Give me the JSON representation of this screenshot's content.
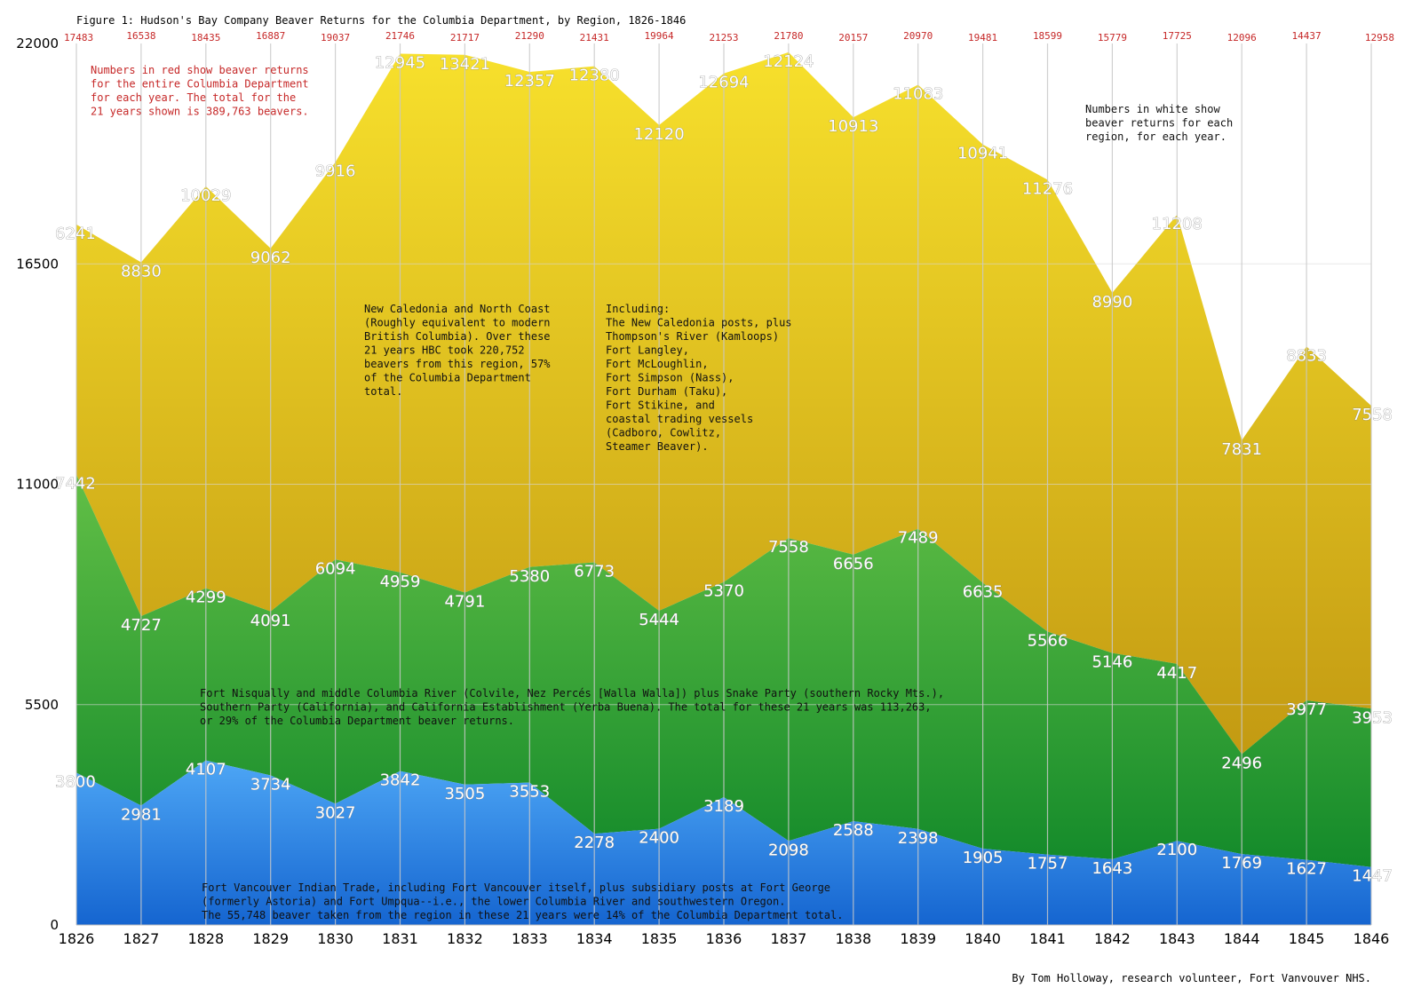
{
  "chart_data": {
    "type": "area",
    "stacked": true,
    "title": "Figure 1: Hudson's Bay Company Beaver Returns for the Columbia Department, by Region, 1826-1846",
    "x": [
      "1826",
      "1827",
      "1828",
      "1829",
      "1830",
      "1831",
      "1832",
      "1833",
      "1834",
      "1835",
      "1836",
      "1837",
      "1838",
      "1839",
      "1840",
      "1841",
      "1842",
      "1843",
      "1844",
      "1845",
      "1846"
    ],
    "y_ticks": [
      "0",
      "5500",
      "11000",
      "16500",
      "22000"
    ],
    "ylim": [
      0,
      22000
    ],
    "grid": "horizontal and vertical lines at each year and y tick",
    "totals": [
      17483,
      16538,
      18435,
      16887,
      19037,
      21746,
      21717,
      21290,
      21431,
      19964,
      21253,
      21780,
      20157,
      20970,
      19481,
      18599,
      15779,
      17725,
      12096,
      14437,
      12958
    ],
    "series": [
      {
        "key": "fort_vancouver",
        "color_top": "#4da6f5",
        "color_bottom": "#1565d0",
        "values": [
          3800,
          2981,
          4107,
          3734,
          3027,
          3842,
          3505,
          3553,
          2278,
          2400,
          3189,
          2098,
          2588,
          2398,
          1905,
          1757,
          1643,
          2100,
          1769,
          1627,
          1447
        ]
      },
      {
        "key": "nisqually",
        "color_top": "#62bf46",
        "color_bottom": "#138a2a",
        "values": [
          7442,
          4727,
          4299,
          4091,
          6094,
          4959,
          4791,
          5380,
          6773,
          5444,
          5370,
          7558,
          6656,
          7489,
          6635,
          5566,
          5146,
          4417,
          2496,
          3977,
          3953
        ]
      },
      {
        "key": "new_caledonia",
        "color_top": "#f7e02c",
        "color_bottom": "#c39a12",
        "values": [
          6241,
          8830,
          10029,
          9062,
          9916,
          12945,
          13421,
          12357,
          12380,
          12120,
          12694,
          12124,
          10913,
          11083,
          10941,
          11276,
          8990,
          11208,
          7831,
          8833,
          7558
        ]
      }
    ],
    "annotations": {
      "red_note": [
        "Numbers in red show beaver returns",
        "for the entire Columbia Department",
        "for each year. The total for the",
        "21 years shown is 389,763 beavers."
      ],
      "white_note": [
        "Numbers in white show",
        "beaver returns for each",
        "region, for each year."
      ],
      "new_caledonia_note": [
        "New Caledonia and North Coast",
        "(Roughly equivalent to modern",
        "British Columbia). Over these",
        "21 years HBC took 220,752",
        "beavers from this region, 57%",
        "of the Columbia Department",
        "total."
      ],
      "including_note": [
        "Including:",
        "The New Caledonia posts, plus",
        "Thompson's River (Kamloops)",
        "Fort Langley,",
        "Fort McLoughlin,",
        "Fort Simpson (Nass),",
        "Fort Durham (Taku),",
        "Fort Stikine, and",
        "coastal trading vessels",
        "(Cadboro, Cowlitz,",
        "Steamer Beaver)."
      ],
      "nisqually_note": [
        "Fort Nisqually and middle Columbia River (Colvile, Nez Percés [Walla Walla]) plus Snake Party (southern Rocky Mts.),",
        "Southern Party (California), and California Establishment (Yerba Buena). The total for these 21 years was 113,263,",
        "or 29% of the Columbia Department beaver returns."
      ],
      "vancouver_note": [
        "Fort Vancouver Indian Trade, including Fort Vancouver itself, plus subsidiary posts at Fort George",
        "(formerly Astoria) and Fort Umpqua--i.e., the lower Columbia River and southwestern Oregon.",
        "The 55,748 beaver taken from the region in these 21 years were 14% of the Columbia Department total."
      ]
    },
    "credit": "By Tom Holloway, research volunteer, Fort Vanvouver NHS."
  }
}
